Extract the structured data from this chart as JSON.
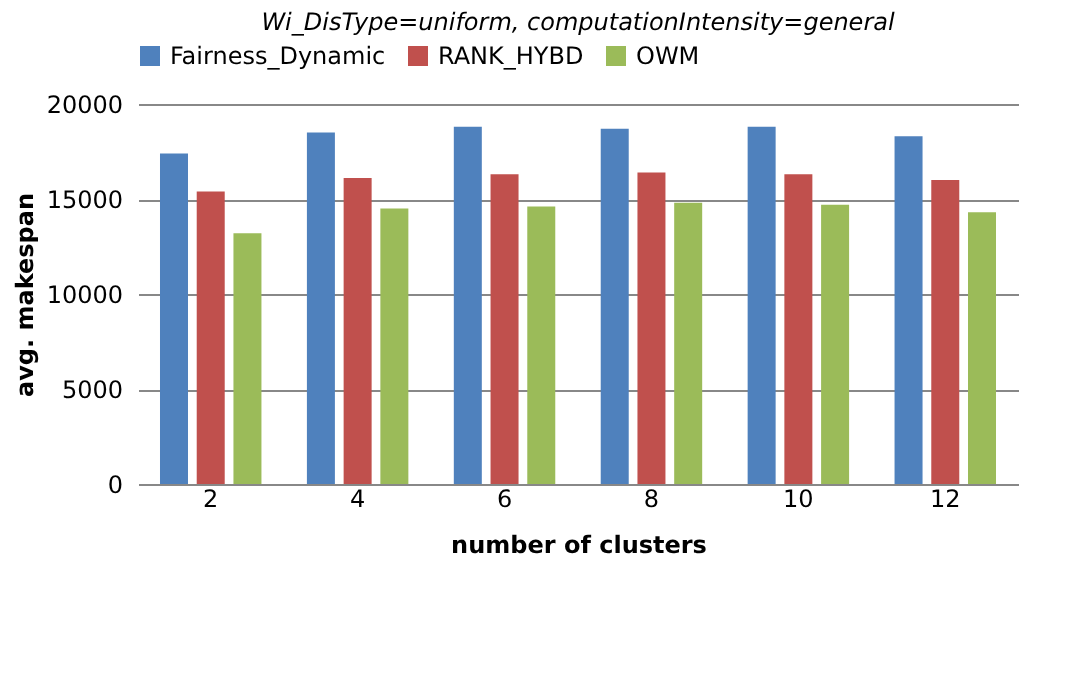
{
  "chart_data": {
    "type": "bar",
    "title": "Wi_DisType=uniform, computationIntensity=general",
    "xlabel": "number of clusters",
    "ylabel": "avg. makespan",
    "categories": [
      "2",
      "4",
      "6",
      "8",
      "10",
      "12"
    ],
    "series": [
      {
        "name": "Fairness_Dynamic",
        "color": "#4f81bd",
        "values": [
          17400,
          18500,
          18800,
          18700,
          18800,
          18300
        ]
      },
      {
        "name": "RANK_HYBD",
        "color": "#c0504d",
        "values": [
          15400,
          16100,
          16300,
          16400,
          16300,
          16000
        ]
      },
      {
        "name": "OWM",
        "color": "#9bbb59",
        "values": [
          13200,
          14500,
          14600,
          14800,
          14700,
          14300
        ]
      }
    ],
    "ylim": [
      0,
      20000
    ],
    "yticks": [
      0,
      5000,
      10000,
      15000,
      20000
    ],
    "grid": "y",
    "legend": "top"
  }
}
